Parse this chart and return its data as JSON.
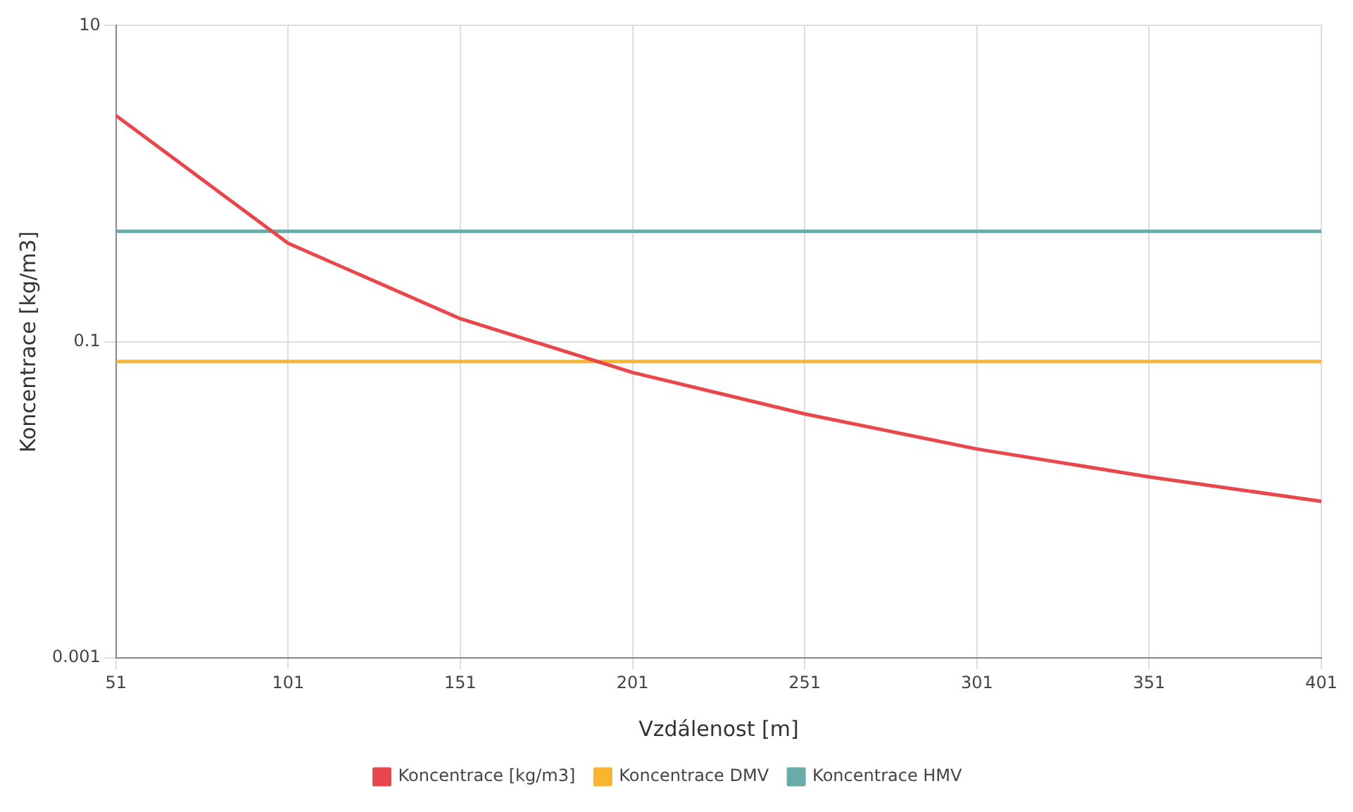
{
  "chart_data": {
    "type": "line",
    "xlabel": "Vzdálenost [m]",
    "ylabel": "Koncentrace [kg/m3]",
    "x": [
      51,
      101,
      151,
      201,
      251,
      301,
      351,
      401
    ],
    "series": [
      {
        "name": "Koncentrace [kg/m3]",
        "color": "#e8474b",
        "values": [
          2.7,
          0.42,
          0.14,
          0.064,
          0.035,
          0.021,
          0.014,
          0.0098
        ]
      },
      {
        "name": "Koncentrace DMV",
        "color": "#f7b530",
        "values": [
          0.075,
          0.075,
          0.075,
          0.075,
          0.075,
          0.075,
          0.075,
          0.075
        ]
      },
      {
        "name": "Koncentrace HMV",
        "color": "#6aabaa",
        "values": [
          0.5,
          0.5,
          0.5,
          0.5,
          0.5,
          0.5,
          0.5,
          0.5
        ]
      }
    ],
    "xlim": [
      51,
      401
    ],
    "xticks": [
      51,
      101,
      151,
      201,
      251,
      301,
      351,
      401
    ],
    "ylim": [
      0.001,
      10
    ],
    "yticks": [
      0.001,
      0.1,
      10
    ],
    "log": true,
    "grid": true,
    "legend": "bottom",
    "marker": "none",
    "line_style": "solid"
  }
}
